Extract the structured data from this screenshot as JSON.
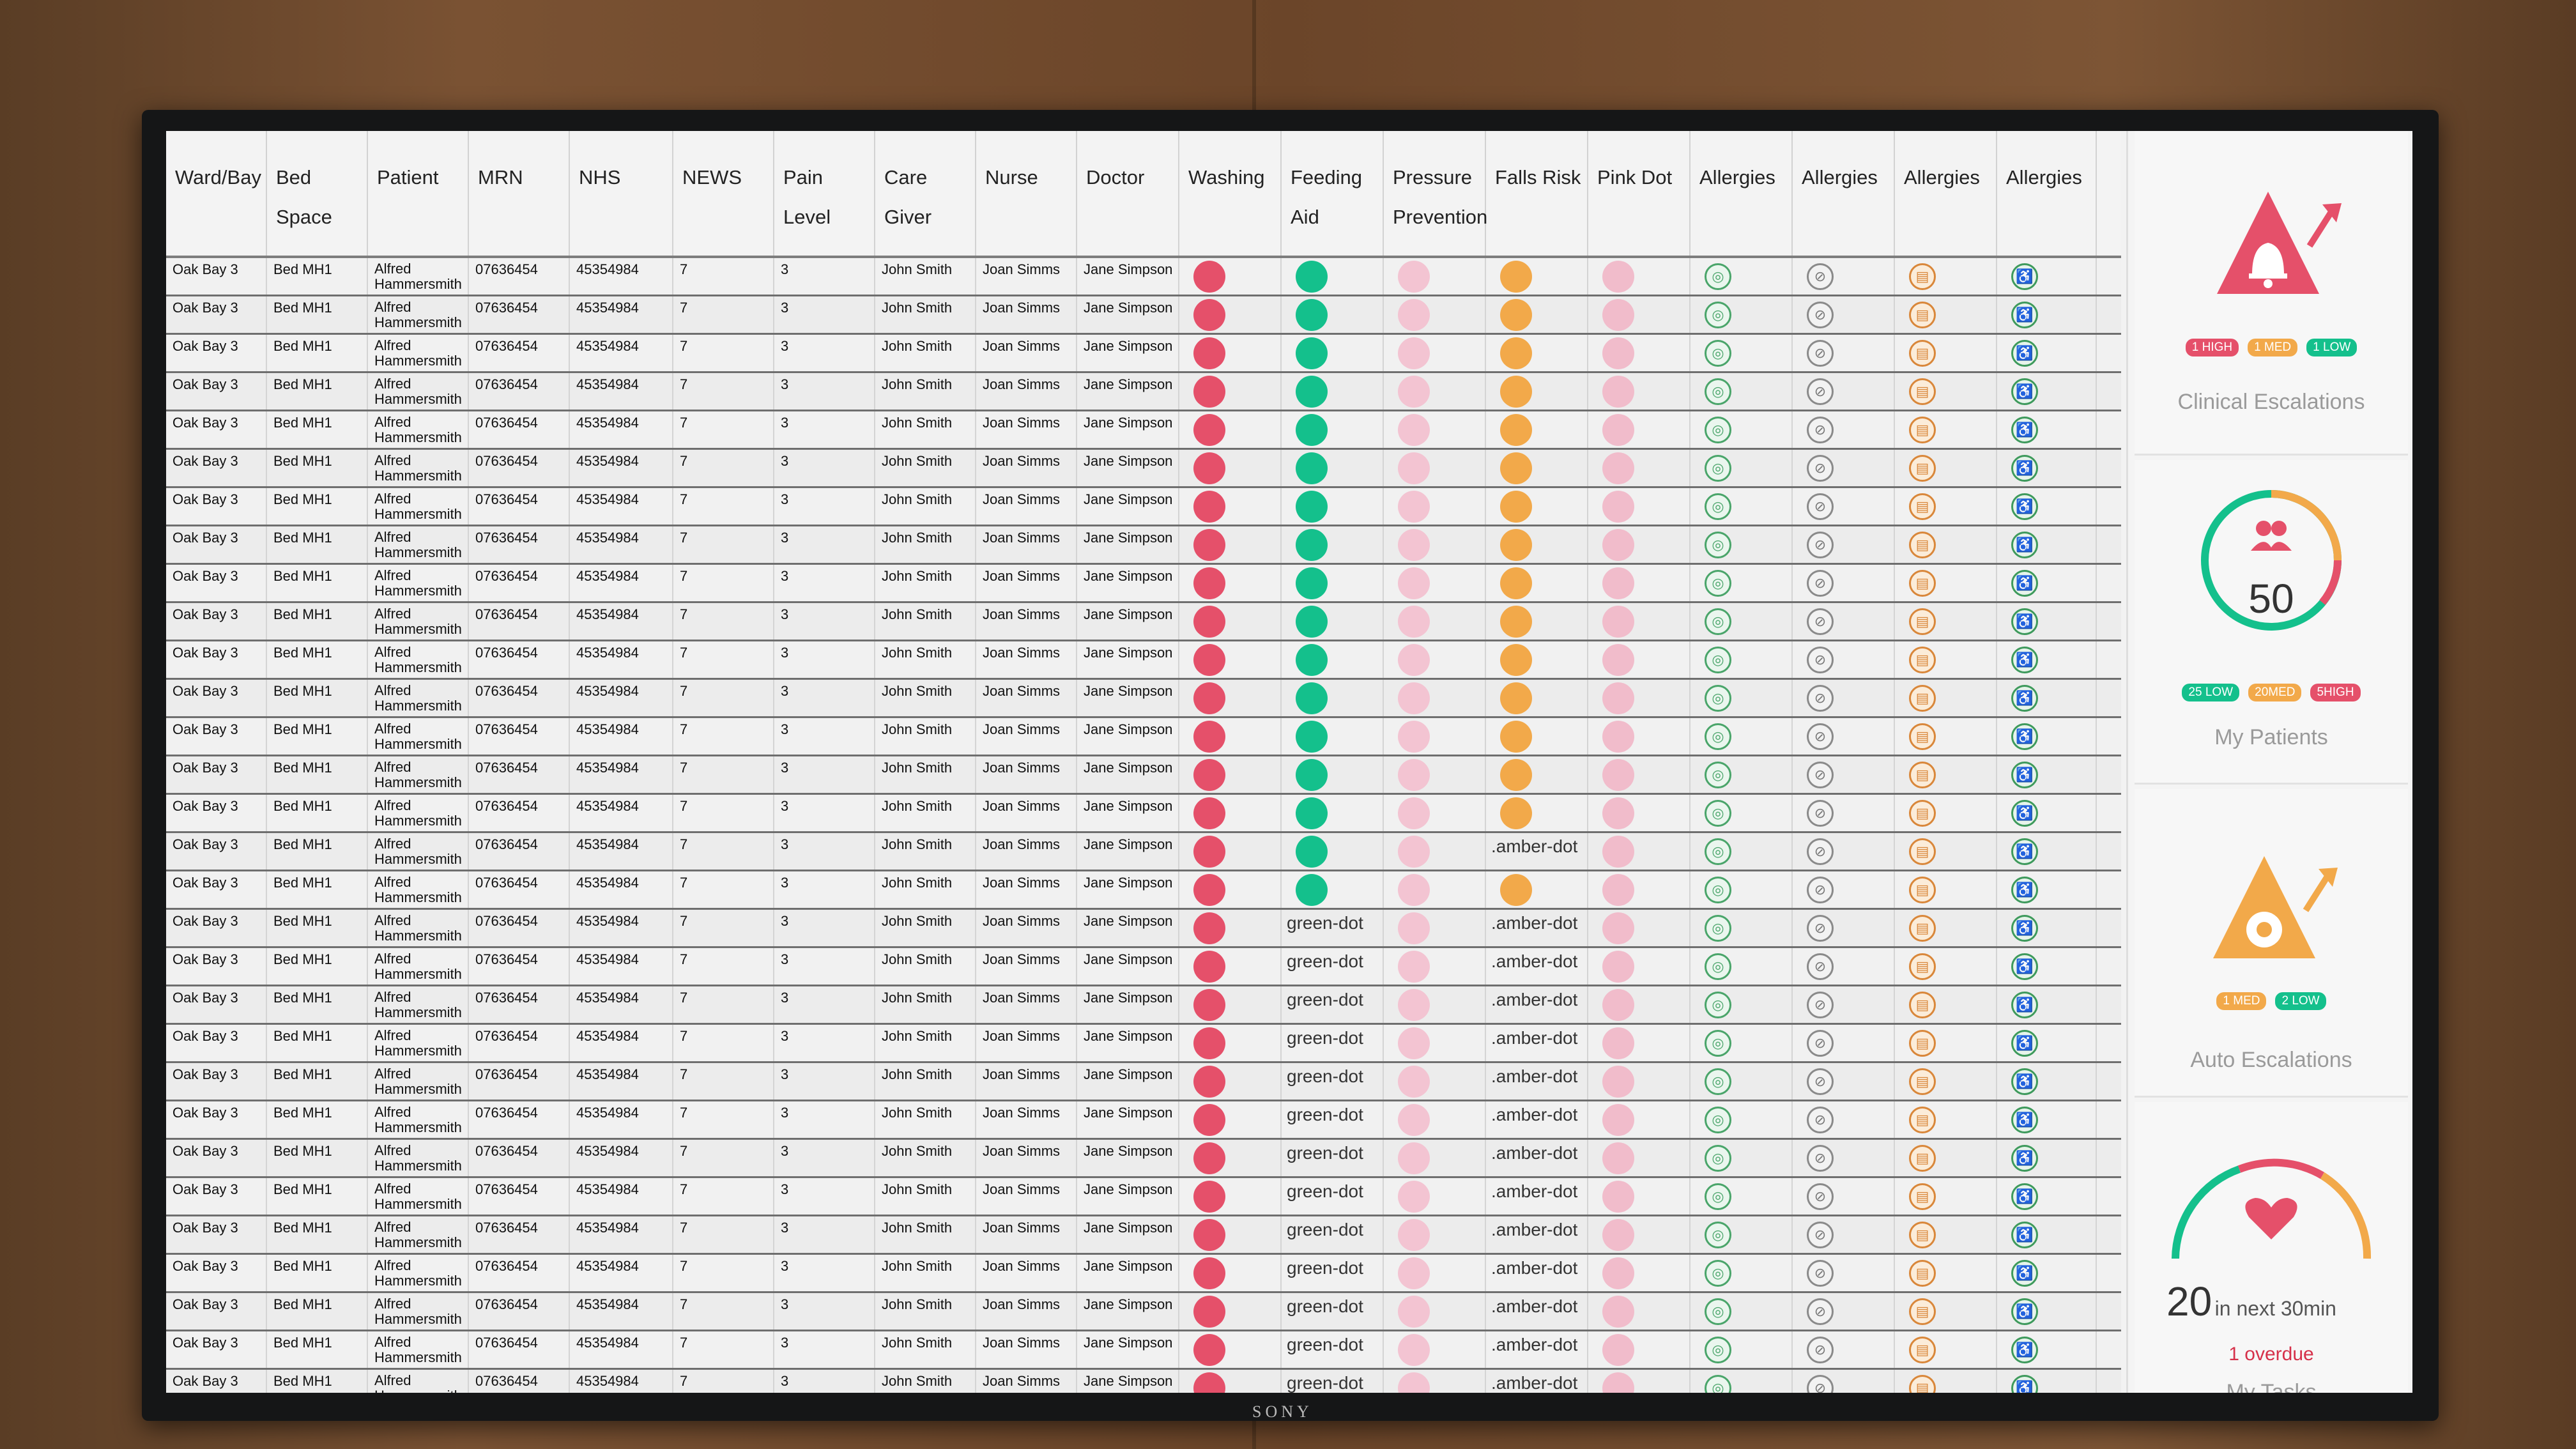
{
  "tv_brand": "SONY",
  "columns": [
    {
      "key": "ward",
      "label": "Ward/Bay",
      "width": 158
    },
    {
      "key": "bed",
      "label": "Bed Space",
      "width": 158
    },
    {
      "key": "patient",
      "label": "Patient",
      "width": 158
    },
    {
      "key": "mrn",
      "label": "MRN",
      "width": 158
    },
    {
      "key": "nhs",
      "label": "NHS",
      "width": 162
    },
    {
      "key": "news",
      "label": "NEWS",
      "width": 158
    },
    {
      "key": "pain",
      "label": "Pain Level",
      "width": 158
    },
    {
      "key": "carer",
      "label": "Care Giver",
      "width": 158
    },
    {
      "key": "nurse",
      "label": "Nurse",
      "width": 158
    },
    {
      "key": "doctor",
      "label": "Doctor",
      "width": 160
    },
    {
      "key": "washing",
      "label": "Washing",
      "width": 160
    },
    {
      "key": "feeding",
      "label": "Feeding Aid",
      "width": 160
    },
    {
      "key": "pressure",
      "label": "Pressure Prevention",
      "width": 160
    },
    {
      "key": "falls",
      "label": "Falls Risk",
      "width": 160
    },
    {
      "key": "pinkdot",
      "label": "Pink Dot",
      "width": 160
    },
    {
      "key": "allergy1",
      "label": "Allergies",
      "width": 160
    },
    {
      "key": "allergy2",
      "label": "Allergies",
      "width": 160
    },
    {
      "key": "allergy3",
      "label": "Allergies",
      "width": 160
    },
    {
      "key": "allergy4",
      "label": "Allergies",
      "width": 156
    }
  ],
  "row_template": {
    "ward": "Oak Bay 3",
    "bed": "Bed MH1",
    "patient_line1": "Alfred",
    "patient_line2": "Hammersmith",
    "mrn": "07636454",
    "nhs": "45354984",
    "news": "7",
    "pain": "3",
    "carer": "John Smith",
    "nurse": "Joan Simms",
    "doctor": "Jane Simpson"
  },
  "fallback_text": {
    "feeding": "green-dot",
    "falls": ".amber-dot"
  },
  "rows_feeding_dot": [
    true,
    true,
    true,
    true,
    true,
    true,
    true,
    true,
    true,
    true,
    true,
    true,
    true,
    true,
    true,
    true,
    true,
    false,
    false,
    false,
    false,
    false,
    false,
    false,
    false,
    false,
    false,
    false,
    false,
    false
  ],
  "rows_falls_dot": [
    true,
    true,
    true,
    true,
    true,
    true,
    true,
    true,
    true,
    true,
    true,
    true,
    true,
    true,
    true,
    false,
    true,
    false,
    false,
    false,
    false,
    false,
    false,
    false,
    false,
    false,
    false,
    false,
    false,
    false
  ],
  "status_colors": {
    "red": "#e5506a",
    "green": "#14c08c",
    "pink": "#f3c4d2",
    "amber": "#f2a94a"
  },
  "allergy_icons": [
    "target-icon",
    "no-eye-icon",
    "clipboard-icon",
    "wheelchair-icon"
  ],
  "panels": {
    "clinical": {
      "title": "Clinical Escalations",
      "badges": [
        "1 HIGH",
        "1 MED",
        "1 LOW"
      ]
    },
    "patients": {
      "title": "My Patients",
      "count": "50",
      "badges": [
        "25 LOW",
        "20MED",
        "5HIGH"
      ]
    },
    "auto": {
      "title": "Auto Escalations",
      "badges": [
        "1 MED",
        "2 LOW"
      ]
    },
    "tasks": {
      "title": "My Tasks",
      "count": "20",
      "count_suffix": "in next 30min",
      "overdue": "1 overdue"
    }
  }
}
